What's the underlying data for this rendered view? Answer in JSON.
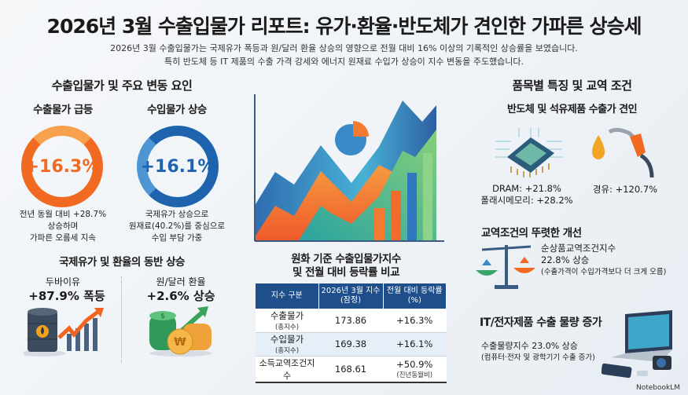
{
  "title": "2026년 3월 수출입물가 리포트: 유가·환율·반도체가 견인한 가파른 상승세",
  "subtitle": [
    "2026년 3월 수출입물가는 국제유가 폭등과 원/달러 환율 상승의 영향으로 전월 대비 16% 이상의 기록적인 상승률을 보였습니다.",
    "특히 반도체 등 IT 제품의 수출 가격 강세와 에너지 원재료 수입가 상승이 지수 변동을 주도했습니다."
  ],
  "left": {
    "heading": "수출입물가 및 주요 변동 요인",
    "export": {
      "title": "수출물가 급등",
      "value": "+16.3%",
      "caption": [
        "전년 동월 대비 +28.7%",
        "상승하며",
        "가파른 오름세 지속"
      ],
      "color": "#f26a21"
    },
    "import": {
      "title": "수입물가 상승",
      "value": "+16.1%",
      "caption": [
        "국제유가 상승으로",
        "원재료(40.2%)를 중심으로",
        "수입 부담 가중"
      ],
      "color": "#1d63ad"
    },
    "heading2": "국제유가 및 환율의 동반 상승",
    "oil": {
      "label": "두바이유",
      "value": "+87.9% 폭등"
    },
    "fx": {
      "label": "원/달러 환율",
      "value": "+2.6% 상승"
    }
  },
  "center": {
    "table_title": [
      "원화 기준 수출입물가지수",
      "및 전월 대비 등락률 비교"
    ],
    "headers": [
      "지수 구분",
      "2026년 3월 지수 (잠정)",
      "전월 대비 등락률 (%)"
    ],
    "rows": [
      {
        "name": "수출물가",
        "note": "(총지수)",
        "index": "173.86",
        "change": "+16.3%",
        "change_note": ""
      },
      {
        "name": "수입물가",
        "note": "(총지수)",
        "index": "169.38",
        "change": "+16.1%",
        "change_note": ""
      },
      {
        "name": "소득교역조건지수",
        "note": "",
        "index": "168.61",
        "change": "+50.9%",
        "change_note": "(진년동월비)"
      }
    ]
  },
  "right": {
    "heading": "품목별 특징 및 교역 조건",
    "sub": "반도체 및 석유제품 수출가 견인",
    "dram": "DRAM: +21.8%",
    "flash": "폴래시메모리: +28.2%",
    "diesel": "경유: +120.7%",
    "tot_title": "교역조건의 뚜렷한 개선",
    "tot_lines": [
      "순상품교역조건지수",
      "22.8% 상승",
      "(수출가격이 수입가격보다 더 크게 오름)"
    ],
    "it_title": "IT/전자제품 수출 물량 증가",
    "it_lines": [
      "수출물량지수 23.0% 상승",
      "(컴퓨터·전자 및 광학기기 수출 증가)"
    ]
  },
  "watermark": "NotebookLM"
}
